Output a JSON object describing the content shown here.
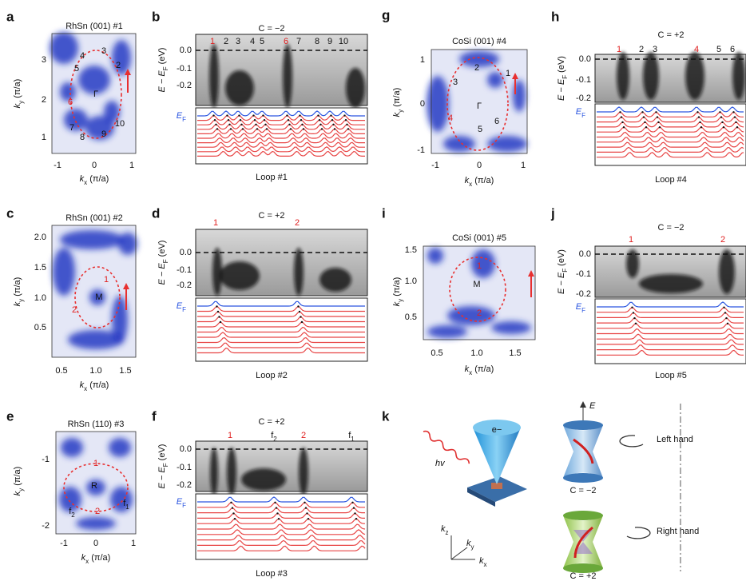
{
  "panels": [
    {
      "letter": "a",
      "title": "RhSn (001) #1",
      "y_label": {
        "main": "k",
        "sub": "y",
        "tail": " (π/a)"
      },
      "x_label": {
        "main": "k",
        "sub": "x",
        "tail": " (π/a)"
      },
      "y_ticks": [
        "3",
        "2",
        "1"
      ],
      "x_ticks": [
        "-1",
        "0",
        "1"
      ],
      "points": [
        {
          "text": "4",
          "color": "#111"
        },
        {
          "text": "3",
          "color": "#111"
        },
        {
          "text": "5",
          "color": "#111"
        },
        {
          "text": "2",
          "color": "#111"
        },
        {
          "text": "Γ",
          "color": "#111"
        },
        {
          "text": "6",
          "color": "#e02020"
        },
        {
          "text": "7",
          "color": "#111"
        },
        {
          "text": "8",
          "color": "#111"
        },
        {
          "text": "9",
          "color": "#111"
        },
        {
          "text": "10",
          "color": "#111"
        }
      ]
    },
    {
      "letter": "b",
      "chern": "C = −2",
      "y_label": {
        "main": "E − E",
        "sub": "F",
        "tail": " (eV)"
      },
      "y_ticks": [
        "0.0",
        "-0.1",
        "-0.2"
      ],
      "fermi": {
        "main": "E",
        "sub": "F"
      },
      "caption": "Loop #1",
      "bands": [
        {
          "text": "1",
          "color": "#e02020"
        },
        {
          "text": "2",
          "color": "#111"
        },
        {
          "text": "3",
          "color": "#111"
        },
        {
          "text": "4",
          "color": "#111"
        },
        {
          "text": "5",
          "color": "#111"
        },
        {
          "text": "6",
          "color": "#e02020"
        },
        {
          "text": "7",
          "color": "#111"
        },
        {
          "text": "8",
          "color": "#111"
        },
        {
          "text": "9",
          "color": "#111"
        },
        {
          "text": "10",
          "color": "#111"
        }
      ]
    },
    {
      "letter": "c",
      "title": "RhSn (001) #2",
      "y_label": {
        "main": "k",
        "sub": "y",
        "tail": " (π/a)"
      },
      "x_label": {
        "main": "k",
        "sub": "x",
        "tail": " (π/a)"
      },
      "y_ticks": [
        "2.0",
        "1.5",
        "1.0",
        "0.5"
      ],
      "x_ticks": [
        "0.5",
        "1.0",
        "1.5"
      ],
      "points": [
        {
          "text": "1",
          "color": "#e02020"
        },
        {
          "text": "M",
          "color": "#111"
        },
        {
          "text": "2",
          "color": "#e02020"
        }
      ]
    },
    {
      "letter": "d",
      "chern": "C = +2",
      "y_label": {
        "main": "E − E",
        "sub": "F",
        "tail": " (eV)"
      },
      "y_ticks": [
        "0.0",
        "-0.1",
        "-0.2"
      ],
      "fermi": {
        "main": "E",
        "sub": "F"
      },
      "caption": "Loop #2",
      "bands": [
        {
          "text": "1",
          "color": "#e02020"
        },
        {
          "text": "2",
          "color": "#e02020"
        }
      ]
    },
    {
      "letter": "e",
      "title": "RhSn (110) #3",
      "y_label": {
        "main": "k",
        "sub": "y",
        "tail": " (π/a)"
      },
      "x_label": {
        "main": "k",
        "sub": "x",
        "tail": " (π/a)"
      },
      "y_ticks": [
        "-1",
        "-2"
      ],
      "x_ticks": [
        "-1",
        "0",
        "1"
      ],
      "points": [
        {
          "text": "1",
          "color": "#e02020"
        },
        {
          "text": "R",
          "color": "#111"
        },
        {
          "text": "2",
          "color": "#e02020"
        },
        {
          "text": {
            "main": "f",
            "sub": "2"
          },
          "color": "#111"
        },
        {
          "text": {
            "main": "f",
            "sub": "1"
          },
          "color": "#111"
        }
      ]
    },
    {
      "letter": "f",
      "chern": "C = +2",
      "y_label": {
        "main": "E − E",
        "sub": "F",
        "tail": " (eV)"
      },
      "y_ticks": [
        "0.0",
        "-0.1",
        "-0.2"
      ],
      "fermi": {
        "main": "E",
        "sub": "F"
      },
      "caption": "Loop #3",
      "bands": [
        {
          "text": "1",
          "color": "#e02020"
        },
        {
          "text": {
            "main": "f",
            "sub": "2"
          },
          "color": "#111"
        },
        {
          "text": "2",
          "color": "#e02020"
        },
        {
          "text": {
            "main": "f",
            "sub": "1"
          },
          "color": "#111"
        }
      ]
    },
    {
      "letter": "g",
      "title": "CoSi (001) #4",
      "y_label": {
        "main": "k",
        "sub": "y",
        "tail": " (π/a)"
      },
      "x_label": {
        "main": "k",
        "sub": "x",
        "tail": " (π/a)"
      },
      "y_ticks": [
        "1",
        "0",
        "-1"
      ],
      "x_ticks": [
        "-1",
        "0",
        "1"
      ],
      "points": [
        {
          "text": "2",
          "color": "#111"
        },
        {
          "text": "1",
          "color": "#111"
        },
        {
          "text": "3",
          "color": "#111"
        },
        {
          "text": "Γ",
          "color": "#111"
        },
        {
          "text": "4",
          "color": "#e02020"
        },
        {
          "text": "5",
          "color": "#111"
        },
        {
          "text": "6",
          "color": "#111"
        }
      ]
    },
    {
      "letter": "h",
      "chern": "C = +2",
      "y_label": {
        "main": "E − E",
        "sub": "F",
        "tail": " (eV)"
      },
      "y_ticks": [
        "0.0",
        "-0.1",
        "-0.2"
      ],
      "fermi": {
        "main": "E",
        "sub": "F"
      },
      "caption": "Loop #4",
      "bands": [
        {
          "text": "1",
          "color": "#e02020"
        },
        {
          "text": "2",
          "color": "#111"
        },
        {
          "text": "3",
          "color": "#111"
        },
        {
          "text": "4",
          "color": "#e02020"
        },
        {
          "text": "5",
          "color": "#111"
        },
        {
          "text": "6",
          "color": "#111"
        }
      ]
    },
    {
      "letter": "i",
      "title": "CoSi (001) #5",
      "y_label": {
        "main": "k",
        "sub": "y",
        "tail": " (π/a)"
      },
      "x_label": {
        "main": "k",
        "sub": "x",
        "tail": " (π/a)"
      },
      "y_ticks": [
        "1.5",
        "1.0",
        "0.5"
      ],
      "x_ticks": [
        "0.5",
        "1.0",
        "1.5"
      ],
      "points": [
        {
          "text": "1",
          "color": "#e02020"
        },
        {
          "text": "M",
          "color": "#111"
        },
        {
          "text": "2",
          "color": "#e02020"
        }
      ]
    },
    {
      "letter": "j",
      "chern": "C = −2",
      "y_label": {
        "main": "E − E",
        "sub": "F",
        "tail": " (eV)"
      },
      "y_ticks": [
        "0.0",
        "-0.1",
        "-0.2"
      ],
      "fermi": {
        "main": "E",
        "sub": "F"
      },
      "caption": "Loop #5",
      "bands": [
        {
          "text": "1",
          "color": "#e02020"
        },
        {
          "text": "2",
          "color": "#e02020"
        }
      ]
    }
  ],
  "schematic": {
    "letter": "k",
    "photon": "hv",
    "electron": "e−",
    "energy": "E",
    "left": "Left hand",
    "right": "Right hand",
    "chern_top": "C = −2",
    "chern_bottom": "C = +2",
    "axes": [
      {
        "main": "k",
        "sub": "z"
      },
      {
        "main": "k",
        "sub": "y"
      },
      {
        "main": "k",
        "sub": "x"
      }
    ]
  }
}
